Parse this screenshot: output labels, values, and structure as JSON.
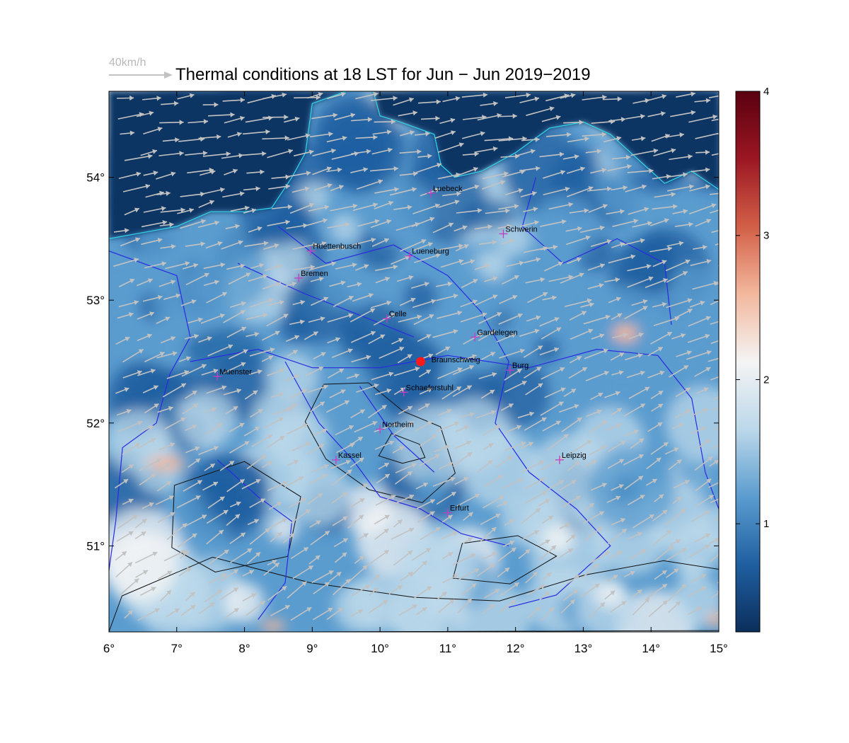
{
  "title": "Thermal conditions at 18 LST for Jun − Jun  2019−2019",
  "wind_reference": {
    "label": "40km/h",
    "speed_kmh": 40
  },
  "axes": {
    "lon_range": [
      6,
      15
    ],
    "lat_range": [
      50.3,
      54.7
    ],
    "x_ticks": [
      "6°",
      "7°",
      "8°",
      "9°",
      "10°",
      "11°",
      "12°",
      "13°",
      "14°",
      "15°"
    ],
    "x_tick_values": [
      6,
      7,
      8,
      9,
      10,
      11,
      12,
      13,
      14,
      15
    ],
    "y_ticks": [
      "51°",
      "52°",
      "53°",
      "54°"
    ],
    "y_tick_values": [
      51,
      52,
      53,
      54
    ]
  },
  "colorbar": {
    "range": [
      0.25,
      4.0
    ],
    "ticks": [
      "1",
      "2",
      "3",
      "4"
    ],
    "tick_values": [
      1,
      2,
      3,
      4
    ],
    "colors": [
      "#0c2f5c",
      "#1f5fa0",
      "#5b9ccf",
      "#bcd8ea",
      "#f4f4f4",
      "#f2b89d",
      "#d25f47",
      "#9b1723",
      "#5a0010"
    ]
  },
  "colors": {
    "sea": "#0f3564",
    "coastline": "#2fd8e8",
    "borders": "#2a2ae0",
    "city_marker": "#c040c0",
    "site_marker": "#ff1a1a",
    "wind_arrow": "#c2c2c2",
    "relief_contour": "#111111"
  },
  "site": {
    "name": "Braunschweig",
    "lon": 10.6,
    "lat": 52.5
  },
  "cities": [
    {
      "name": "Luebeck",
      "lon": 10.75,
      "lat": 53.87
    },
    {
      "name": "Schwerin",
      "lon": 11.82,
      "lat": 53.54
    },
    {
      "name": "Huettenbusch",
      "lon": 8.98,
      "lat": 53.4
    },
    {
      "name": "Lueneburg",
      "lon": 10.44,
      "lat": 53.36
    },
    {
      "name": "Bremen",
      "lon": 8.8,
      "lat": 53.18
    },
    {
      "name": "Celle",
      "lon": 10.1,
      "lat": 52.85
    },
    {
      "name": "Gardelegen",
      "lon": 11.4,
      "lat": 52.7
    },
    {
      "name": "Burg",
      "lon": 11.92,
      "lat": 52.43
    },
    {
      "name": "Muenster",
      "lon": 7.6,
      "lat": 52.38
    },
    {
      "name": "Schaeferstuhl",
      "lon": 10.35,
      "lat": 52.25
    },
    {
      "name": "Northeim",
      "lon": 10.0,
      "lat": 51.95
    },
    {
      "name": "Kassel",
      "lon": 9.35,
      "lat": 51.7
    },
    {
      "name": "Leipzig",
      "lon": 12.65,
      "lat": 51.7
    },
    {
      "name": "Erfurt",
      "lon": 11.0,
      "lat": 51.27
    }
  ]
}
